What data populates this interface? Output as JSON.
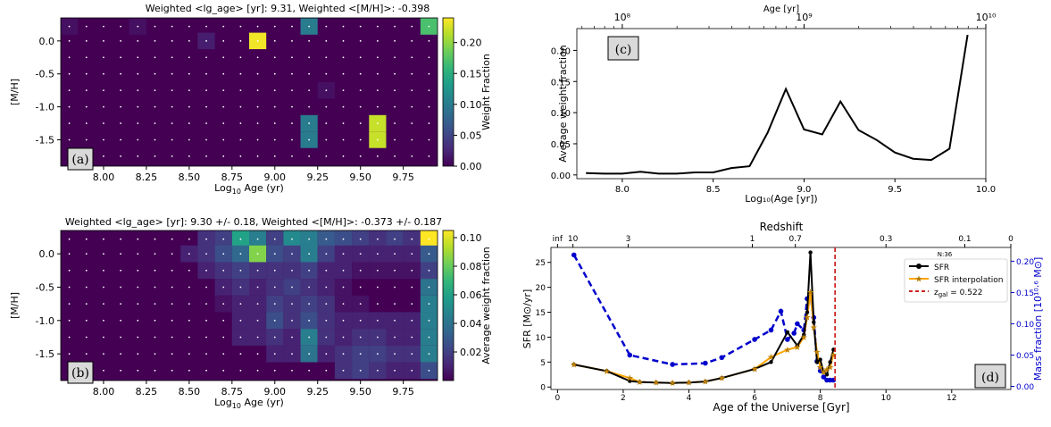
{
  "colors": {
    "viridis": [
      "#440154",
      "#482878",
      "#3e4a89",
      "#31688e",
      "#26828e",
      "#1f9e89",
      "#35b779",
      "#6ece58",
      "#b5de2b",
      "#fde725"
    ],
    "sfr_line": "#000000",
    "interp_line": "#ffa500",
    "mass_line": "#0000cc",
    "zgal_line": "#cc2222"
  },
  "panels": {
    "a": {
      "title": "Weighted <lg_age> [yr]: 9.31,  Weighted <[M/H]>: -0.398",
      "tag": "(a)",
      "xlabel": "Log₁₀ Age (yr)",
      "ylabel": "[M/H]",
      "xticks": [
        "8.00",
        "8.25",
        "8.50",
        "8.75",
        "9.00",
        "9.25",
        "9.50",
        "9.75"
      ],
      "yticks": [
        "0.0",
        "-0.5",
        "-1.0",
        "-1.5"
      ],
      "colorbar_label": "Weight Fraction",
      "colorbar_ticks": [
        "0.20",
        "0.15",
        "0.10",
        "0.05",
        "0.00"
      ]
    },
    "b": {
      "title": "Weighted <lg_age> [yr]: 9.30 +/- 0.18,  Weighted <[M/H]>: -0.373 +/- 0.187",
      "tag": "(b)",
      "xlabel": "Log₁₀ Age (yr)",
      "ylabel": "[M/H]",
      "xticks": [
        "8.00",
        "8.25",
        "8.50",
        "8.75",
        "9.00",
        "9.25",
        "9.50",
        "9.75"
      ],
      "yticks": [
        "0.0",
        "-0.5",
        "-1.0",
        "-1.5"
      ],
      "colorbar_label": "Average weight fraction",
      "colorbar_ticks": [
        "0.10",
        "0.08",
        "0.06",
        "0.04",
        "0.02"
      ]
    },
    "c": {
      "tag": "(c)",
      "xlabel": "Log₁₀(Age [yr])",
      "ylabel": "Average weight fraction",
      "top_label": "Age [yr]",
      "top_ticks": [
        "10⁸",
        "10⁹",
        "10¹⁰"
      ],
      "xticks": [
        "8.0",
        "8.5",
        "9.0",
        "9.5",
        "10.0"
      ],
      "yticks": [
        "0.00",
        "0.05",
        "0.10",
        "0.15",
        "0.20"
      ]
    },
    "d": {
      "tag": "(d)",
      "xlabel": "Age of the Universe [Gyr]",
      "ylabel": "SFR [M⊙/yr]",
      "ylabel_right": "Mass fraction [10¹⁰·⁶ M⊙]",
      "top_label": "Redshift",
      "top_ticks": [
        "inf",
        "10",
        "3",
        "1",
        "0.7",
        "0.3",
        "0.1",
        "0"
      ],
      "xticks": [
        "0",
        "2",
        "4",
        "6",
        "8",
        "10",
        "12"
      ],
      "yticks": [
        "0",
        "5",
        "10",
        "15",
        "20",
        "25"
      ],
      "yticks_right": [
        "0.00",
        "0.05",
        "0.10",
        "0.15",
        "0.20"
      ],
      "note": "N:36",
      "legend": [
        "SFR",
        "SFR interpolation",
        "z_gal = 0.522"
      ],
      "legend_zgal": {
        "pre": "z",
        "sub": "gal",
        "post": " = 0.522"
      }
    }
  },
  "chart_data": [
    {
      "type": "heatmap",
      "title": "Weighted <lg_age> [yr]: 9.31,  Weighted <[M/H]>: -0.398",
      "xlabel": "Log10 Age (yr)",
      "ylabel": "[M/H]",
      "x": [
        7.8,
        7.9,
        8.0,
        8.1,
        8.2,
        8.3,
        8.4,
        8.5,
        8.6,
        8.7,
        8.8,
        8.9,
        9.0,
        9.1,
        9.2,
        9.3,
        9.4,
        9.5,
        9.6,
        9.7,
        9.8,
        9.9
      ],
      "y": [
        0.22,
        0.0,
        -0.25,
        -0.5,
        -0.75,
        -1.0,
        -1.25,
        -1.5,
        -1.75
      ],
      "xlim": [
        7.75,
        9.95
      ],
      "ylim": [
        -1.9,
        0.35
      ],
      "clim": [
        0.0,
        0.24
      ],
      "cells": [
        {
          "x": 7.8,
          "y": 0.22,
          "v": 0.01
        },
        {
          "x": 8.2,
          "y": 0.22,
          "v": 0.01
        },
        {
          "x": 9.2,
          "y": 0.22,
          "v": 0.1
        },
        {
          "x": 9.9,
          "y": 0.22,
          "v": 0.17
        },
        {
          "x": 8.6,
          "y": 0.0,
          "v": 0.02
        },
        {
          "x": 8.9,
          "y": 0.0,
          "v": 0.235
        },
        {
          "x": 9.3,
          "y": -0.75,
          "v": 0.01
        },
        {
          "x": 9.2,
          "y": -1.25,
          "v": 0.1
        },
        {
          "x": 9.2,
          "y": -1.5,
          "v": 0.1
        },
        {
          "x": 9.6,
          "y": -1.25,
          "v": 0.22
        },
        {
          "x": 9.6,
          "y": -1.5,
          "v": 0.22
        }
      ]
    },
    {
      "type": "heatmap",
      "title": "Weighted <lg_age> [yr]: 9.30 +/- 0.18,  Weighted <[M/H]>: -0.373 +/- 0.187",
      "xlabel": "Log10 Age (yr)",
      "ylabel": "[M/H]",
      "x": [
        7.8,
        7.9,
        8.0,
        8.1,
        8.2,
        8.3,
        8.4,
        8.5,
        8.6,
        8.7,
        8.8,
        8.9,
        9.0,
        9.1,
        9.2,
        9.3,
        9.4,
        9.5,
        9.6,
        9.7,
        9.8,
        9.9
      ],
      "y": [
        0.22,
        0.0,
        -0.25,
        -0.5,
        -0.75,
        -1.0,
        -1.25,
        -1.5,
        -1.75
      ],
      "xlim": [
        7.75,
        9.95
      ],
      "ylim": [
        -1.9,
        0.35
      ],
      "clim": [
        0.0,
        0.105
      ],
      "cells": [
        {
          "x": 8.6,
          "y": 0.22,
          "v": 0.015
        },
        {
          "x": 8.7,
          "y": 0.22,
          "v": 0.02
        },
        {
          "x": 8.8,
          "y": 0.22,
          "v": 0.06
        },
        {
          "x": 8.9,
          "y": 0.22,
          "v": 0.045
        },
        {
          "x": 9.0,
          "y": 0.22,
          "v": 0.02
        },
        {
          "x": 9.1,
          "y": 0.22,
          "v": 0.05
        },
        {
          "x": 9.2,
          "y": 0.22,
          "v": 0.045
        },
        {
          "x": 9.3,
          "y": 0.22,
          "v": 0.03
        },
        {
          "x": 9.4,
          "y": 0.22,
          "v": 0.025
        },
        {
          "x": 9.5,
          "y": 0.22,
          "v": 0.02
        },
        {
          "x": 9.6,
          "y": 0.22,
          "v": 0.015
        },
        {
          "x": 9.7,
          "y": 0.22,
          "v": 0.02
        },
        {
          "x": 9.8,
          "y": 0.22,
          "v": 0.015
        },
        {
          "x": 9.9,
          "y": 0.22,
          "v": 0.105
        },
        {
          "x": 8.5,
          "y": 0.0,
          "v": 0.01
        },
        {
          "x": 8.6,
          "y": 0.0,
          "v": 0.015
        },
        {
          "x": 8.7,
          "y": 0.0,
          "v": 0.025
        },
        {
          "x": 8.8,
          "y": 0.0,
          "v": 0.035
        },
        {
          "x": 8.9,
          "y": 0.0,
          "v": 0.085
        },
        {
          "x": 9.0,
          "y": 0.0,
          "v": 0.025
        },
        {
          "x": 9.1,
          "y": 0.0,
          "v": 0.02
        },
        {
          "x": 9.2,
          "y": 0.0,
          "v": 0.045
        },
        {
          "x": 9.3,
          "y": 0.0,
          "v": 0.02
        },
        {
          "x": 9.4,
          "y": 0.0,
          "v": 0.01
        },
        {
          "x": 9.5,
          "y": 0.0,
          "v": 0.01
        },
        {
          "x": 9.6,
          "y": 0.0,
          "v": 0.01
        },
        {
          "x": 9.7,
          "y": 0.0,
          "v": 0.01
        },
        {
          "x": 9.8,
          "y": 0.0,
          "v": 0.01
        },
        {
          "x": 9.9,
          "y": 0.0,
          "v": 0.03
        },
        {
          "x": 8.6,
          "y": -0.25,
          "v": 0.01
        },
        {
          "x": 8.7,
          "y": -0.25,
          "v": 0.015
        },
        {
          "x": 8.8,
          "y": -0.25,
          "v": 0.02
        },
        {
          "x": 8.9,
          "y": -0.25,
          "v": 0.015
        },
        {
          "x": 9.0,
          "y": -0.25,
          "v": 0.015
        },
        {
          "x": 9.1,
          "y": -0.25,
          "v": 0.015
        },
        {
          "x": 9.2,
          "y": -0.25,
          "v": 0.02
        },
        {
          "x": 9.3,
          "y": -0.25,
          "v": 0.01
        },
        {
          "x": 9.4,
          "y": -0.25,
          "v": 0.01
        },
        {
          "x": 9.5,
          "y": -0.25,
          "v": 0.005
        },
        {
          "x": 9.6,
          "y": -0.25,
          "v": 0.005
        },
        {
          "x": 9.7,
          "y": -0.25,
          "v": 0.005
        },
        {
          "x": 9.8,
          "y": -0.25,
          "v": 0.005
        },
        {
          "x": 9.9,
          "y": -0.25,
          "v": 0.02
        },
        {
          "x": 8.7,
          "y": -0.5,
          "v": 0.01
        },
        {
          "x": 8.8,
          "y": -0.5,
          "v": 0.015
        },
        {
          "x": 8.9,
          "y": -0.5,
          "v": 0.01
        },
        {
          "x": 9.0,
          "y": -0.5,
          "v": 0.015
        },
        {
          "x": 9.1,
          "y": -0.5,
          "v": 0.02
        },
        {
          "x": 9.2,
          "y": -0.5,
          "v": 0.015
        },
        {
          "x": 9.3,
          "y": -0.5,
          "v": 0.01
        },
        {
          "x": 9.4,
          "y": -0.5,
          "v": 0.005
        },
        {
          "x": 9.9,
          "y": -0.5,
          "v": 0.04
        },
        {
          "x": 8.7,
          "y": -0.75,
          "v": 0.005
        },
        {
          "x": 8.8,
          "y": -0.75,
          "v": 0.01
        },
        {
          "x": 8.9,
          "y": -0.75,
          "v": 0.01
        },
        {
          "x": 9.0,
          "y": -0.75,
          "v": 0.02
        },
        {
          "x": 9.1,
          "y": -0.75,
          "v": 0.015
        },
        {
          "x": 9.2,
          "y": -0.75,
          "v": 0.02
        },
        {
          "x": 9.3,
          "y": -0.75,
          "v": 0.015
        },
        {
          "x": 9.4,
          "y": -0.75,
          "v": 0.005
        },
        {
          "x": 9.5,
          "y": -0.75,
          "v": 0.005
        },
        {
          "x": 9.9,
          "y": -0.75,
          "v": 0.045
        },
        {
          "x": 8.8,
          "y": -1.0,
          "v": 0.01
        },
        {
          "x": 8.9,
          "y": -1.0,
          "v": 0.01
        },
        {
          "x": 9.0,
          "y": -1.0,
          "v": 0.025
        },
        {
          "x": 9.1,
          "y": -1.0,
          "v": 0.015
        },
        {
          "x": 9.2,
          "y": -1.0,
          "v": 0.025
        },
        {
          "x": 9.3,
          "y": -1.0,
          "v": 0.015
        },
        {
          "x": 9.4,
          "y": -1.0,
          "v": 0.01
        },
        {
          "x": 9.5,
          "y": -1.0,
          "v": 0.01
        },
        {
          "x": 9.6,
          "y": -1.0,
          "v": 0.01
        },
        {
          "x": 9.7,
          "y": -1.0,
          "v": 0.01
        },
        {
          "x": 9.8,
          "y": -1.0,
          "v": 0.01
        },
        {
          "x": 9.9,
          "y": -1.0,
          "v": 0.045
        },
        {
          "x": 8.8,
          "y": -1.25,
          "v": 0.01
        },
        {
          "x": 8.9,
          "y": -1.25,
          "v": 0.01
        },
        {
          "x": 9.0,
          "y": -1.25,
          "v": 0.015
        },
        {
          "x": 9.1,
          "y": -1.25,
          "v": 0.01
        },
        {
          "x": 9.2,
          "y": -1.25,
          "v": 0.045
        },
        {
          "x": 9.3,
          "y": -1.25,
          "v": 0.015
        },
        {
          "x": 9.4,
          "y": -1.25,
          "v": 0.01
        },
        {
          "x": 9.5,
          "y": -1.25,
          "v": 0.015
        },
        {
          "x": 9.6,
          "y": -1.25,
          "v": 0.015
        },
        {
          "x": 9.7,
          "y": -1.25,
          "v": 0.01
        },
        {
          "x": 9.8,
          "y": -1.25,
          "v": 0.01
        },
        {
          "x": 9.9,
          "y": -1.25,
          "v": 0.045
        },
        {
          "x": 9.0,
          "y": -1.5,
          "v": 0.01
        },
        {
          "x": 9.1,
          "y": -1.5,
          "v": 0.01
        },
        {
          "x": 9.2,
          "y": -1.5,
          "v": 0.04
        },
        {
          "x": 9.3,
          "y": -1.5,
          "v": 0.01
        },
        {
          "x": 9.4,
          "y": -1.5,
          "v": 0.015
        },
        {
          "x": 9.5,
          "y": -1.5,
          "v": 0.02
        },
        {
          "x": 9.6,
          "y": -1.5,
          "v": 0.02
        },
        {
          "x": 9.7,
          "y": -1.5,
          "v": 0.015
        },
        {
          "x": 9.8,
          "y": -1.5,
          "v": 0.015
        },
        {
          "x": 9.9,
          "y": -1.5,
          "v": 0.045
        },
        {
          "x": 9.4,
          "y": -1.75,
          "v": 0.015
        },
        {
          "x": 9.5,
          "y": -1.75,
          "v": 0.02
        },
        {
          "x": 9.6,
          "y": -1.75,
          "v": 0.015
        },
        {
          "x": 9.7,
          "y": -1.75,
          "v": 0.01
        },
        {
          "x": 9.8,
          "y": -1.75,
          "v": 0.01
        },
        {
          "x": 9.9,
          "y": -1.75,
          "v": 0.025
        }
      ]
    },
    {
      "type": "line",
      "xlabel": "Log10(Age [yr])",
      "ylabel": "Average weight fraction",
      "xlim": [
        7.75,
        10.0
      ],
      "ylim": [
        -0.006,
        0.235
      ],
      "top_axis": {
        "label": "Age [yr]",
        "ticks": [
          8,
          9,
          10
        ]
      },
      "series": [
        {
          "x": [
            7.8,
            7.9,
            8.0,
            8.1,
            8.2,
            8.3,
            8.4,
            8.5,
            8.6,
            8.7,
            8.8,
            8.9,
            9.0,
            9.1,
            9.2,
            9.3,
            9.4,
            9.5,
            9.6,
            9.7,
            9.8,
            9.9
          ],
          "y": [
            0.003,
            0.002,
            0.002,
            0.005,
            0.002,
            0.002,
            0.004,
            0.004,
            0.011,
            0.014,
            0.068,
            0.138,
            0.073,
            0.065,
            0.118,
            0.072,
            0.056,
            0.036,
            0.026,
            0.024,
            0.042,
            0.225
          ]
        }
      ]
    },
    {
      "type": "line",
      "xlabel": "Age of the Universe [Gyr]",
      "ylabel": "SFR [M⊙/yr]",
      "ylabel_right": "Mass fraction [10^10.6 M⊙]",
      "xlim": [
        -0.2,
        13.8
      ],
      "ylim": [
        -0.5,
        28
      ],
      "ylim_right": [
        -0.005,
        0.222
      ],
      "note": "N:36",
      "top_axis": {
        "label": "Redshift",
        "ticks": [
          "inf",
          "10",
          "3",
          "1",
          "0.7",
          "0.3",
          "0.1",
          "0"
        ],
        "positions": [
          0,
          0.47,
          2.15,
          5.93,
          7.24,
          10.0,
          12.4,
          13.8
        ]
      },
      "legend_position": "top-right",
      "series": [
        {
          "name": "SFR",
          "axis": "left",
          "x": [
            0.5,
            1.5,
            2.2,
            2.5,
            3.0,
            3.5,
            4.0,
            4.5,
            5.0,
            6.0,
            6.5,
            7.0,
            7.3,
            7.5,
            7.6,
            7.7,
            7.8,
            7.9,
            8.0,
            8.1,
            8.2,
            8.3,
            8.4
          ],
          "y": [
            4.5,
            3.2,
            1.2,
            1.0,
            0.9,
            0.8,
            0.9,
            1.1,
            1.8,
            3.6,
            5.0,
            11.0,
            8.3,
            10.5,
            15.0,
            27.0,
            13.0,
            5.0,
            5.5,
            3.0,
            2.5,
            5.0,
            7.5
          ]
        },
        {
          "name": "SFR interpolation",
          "axis": "left",
          "x": [
            0.5,
            1.5,
            2.2,
            2.5,
            3.0,
            3.5,
            4.0,
            4.5,
            5.0,
            6.0,
            6.5,
            7.0,
            7.3,
            7.5,
            7.6,
            7.7,
            7.8,
            7.9,
            8.0,
            8.1,
            8.2,
            8.3,
            8.4
          ],
          "y": [
            4.5,
            3.2,
            1.8,
            1.0,
            0.9,
            0.8,
            0.9,
            1.1,
            1.8,
            3.6,
            6.0,
            7.5,
            8.0,
            10.0,
            14.0,
            19.0,
            12.0,
            7.0,
            4.0,
            3.0,
            3.5,
            4.0,
            6.5
          ]
        },
        {
          "name": "Mass fraction",
          "axis": "right",
          "x": [
            0.5,
            2.2,
            3.5,
            4.5,
            5.0,
            6.0,
            6.5,
            6.8,
            7.0,
            7.2,
            7.3,
            7.5,
            7.6,
            7.7,
            7.8,
            7.9,
            8.0,
            8.1,
            8.2,
            8.3,
            8.4
          ],
          "y": [
            0.21,
            0.05,
            0.035,
            0.037,
            0.046,
            0.075,
            0.09,
            0.12,
            0.075,
            0.085,
            0.1,
            0.09,
            0.14,
            0.145,
            0.11,
            0.04,
            0.025,
            0.015,
            0.01,
            0.01,
            0.01
          ]
        },
        {
          "name": "z_gal = 0.522",
          "axis": "vertical",
          "x": [
            8.45
          ]
        }
      ]
    }
  ]
}
